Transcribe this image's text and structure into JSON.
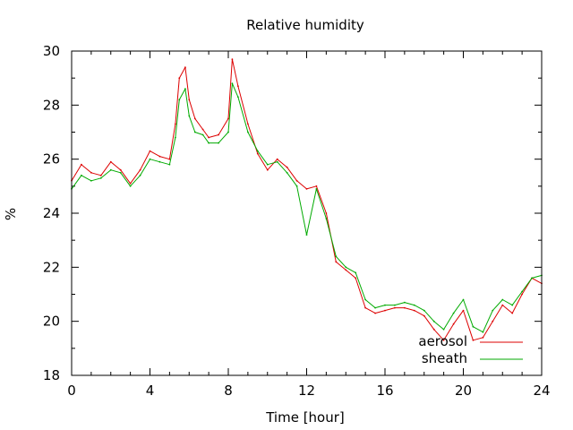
{
  "chart_data": {
    "type": "line",
    "title": "Relative humidity",
    "xlabel": "Time [hour]",
    "ylabel": "%",
    "xlim": [
      0,
      24
    ],
    "ylim": [
      18,
      30
    ],
    "xticks": [
      0,
      4,
      8,
      12,
      16,
      20,
      24
    ],
    "yticks": [
      18,
      20,
      22,
      24,
      26,
      28,
      30
    ],
    "x_tick_labels": [
      "0",
      "4",
      "8",
      "12",
      "16",
      "20",
      "24"
    ],
    "y_tick_labels": [
      "18",
      "20",
      "22",
      "24",
      "26",
      "28",
      "30"
    ],
    "grid": false,
    "legend_position": "bottom-right",
    "series": [
      {
        "name": "aerosol",
        "color": "#dd0000",
        "points": [
          [
            0,
            25.2
          ],
          [
            0.5,
            25.8
          ],
          [
            1,
            25.5
          ],
          [
            1.5,
            25.4
          ],
          [
            2,
            25.9
          ],
          [
            2.5,
            25.6
          ],
          [
            3,
            25.1
          ],
          [
            3.5,
            25.6
          ],
          [
            4,
            26.3
          ],
          [
            4.5,
            26.1
          ],
          [
            5,
            26.0
          ],
          [
            5.3,
            27.3
          ],
          [
            5.5,
            29.0
          ],
          [
            5.8,
            29.4
          ],
          [
            6,
            28.2
          ],
          [
            6.3,
            27.5
          ],
          [
            6.7,
            27.1
          ],
          [
            7,
            26.8
          ],
          [
            7.5,
            26.9
          ],
          [
            8,
            27.5
          ],
          [
            8.2,
            29.7
          ],
          [
            8.5,
            28.7
          ],
          [
            9,
            27.3
          ],
          [
            9.5,
            26.2
          ],
          [
            10,
            25.6
          ],
          [
            10.5,
            26.0
          ],
          [
            11,
            25.7
          ],
          [
            11.5,
            25.2
          ],
          [
            12,
            24.9
          ],
          [
            12.5,
            25.0
          ],
          [
            13,
            24.0
          ],
          [
            13.5,
            22.2
          ],
          [
            14,
            21.9
          ],
          [
            14.5,
            21.6
          ],
          [
            15,
            20.5
          ],
          [
            15.5,
            20.3
          ],
          [
            16,
            20.4
          ],
          [
            16.5,
            20.5
          ],
          [
            17,
            20.5
          ],
          [
            17.5,
            20.4
          ],
          [
            18,
            20.2
          ],
          [
            18.5,
            19.7
          ],
          [
            19,
            19.3
          ],
          [
            19.5,
            19.9
          ],
          [
            20,
            20.4
          ],
          [
            20.5,
            19.3
          ],
          [
            21,
            19.4
          ],
          [
            21.5,
            20.0
          ],
          [
            22,
            20.6
          ],
          [
            22.5,
            20.3
          ],
          [
            23,
            21.0
          ],
          [
            23.5,
            21.6
          ],
          [
            24,
            21.4
          ]
        ]
      },
      {
        "name": "sheath",
        "color": "#00aa00",
        "points": [
          [
            0,
            24.9
          ],
          [
            0.5,
            25.4
          ],
          [
            1,
            25.2
          ],
          [
            1.5,
            25.3
          ],
          [
            2,
            25.6
          ],
          [
            2.5,
            25.5
          ],
          [
            3,
            25.0
          ],
          [
            3.5,
            25.4
          ],
          [
            4,
            26.0
          ],
          [
            4.5,
            25.9
          ],
          [
            5,
            25.8
          ],
          [
            5.3,
            26.8
          ],
          [
            5.5,
            28.2
          ],
          [
            5.8,
            28.6
          ],
          [
            6,
            27.6
          ],
          [
            6.3,
            27.0
          ],
          [
            6.7,
            26.9
          ],
          [
            7,
            26.6
          ],
          [
            7.5,
            26.6
          ],
          [
            8,
            27.0
          ],
          [
            8.2,
            28.8
          ],
          [
            8.5,
            28.3
          ],
          [
            9,
            27.0
          ],
          [
            9.5,
            26.3
          ],
          [
            10,
            25.8
          ],
          [
            10.5,
            25.9
          ],
          [
            11,
            25.5
          ],
          [
            11.5,
            25.0
          ],
          [
            12,
            23.2
          ],
          [
            12.5,
            24.9
          ],
          [
            13,
            23.8
          ],
          [
            13.5,
            22.4
          ],
          [
            14,
            22.0
          ],
          [
            14.5,
            21.8
          ],
          [
            15,
            20.8
          ],
          [
            15.5,
            20.5
          ],
          [
            16,
            20.6
          ],
          [
            16.5,
            20.6
          ],
          [
            17,
            20.7
          ],
          [
            17.5,
            20.6
          ],
          [
            18,
            20.4
          ],
          [
            18.5,
            20.0
          ],
          [
            19,
            19.7
          ],
          [
            19.5,
            20.3
          ],
          [
            20,
            20.8
          ],
          [
            20.5,
            19.8
          ],
          [
            21,
            19.6
          ],
          [
            21.5,
            20.4
          ],
          [
            22,
            20.8
          ],
          [
            22.5,
            20.6
          ],
          [
            23,
            21.1
          ],
          [
            23.5,
            21.6
          ],
          [
            24,
            21.7
          ]
        ]
      }
    ]
  }
}
